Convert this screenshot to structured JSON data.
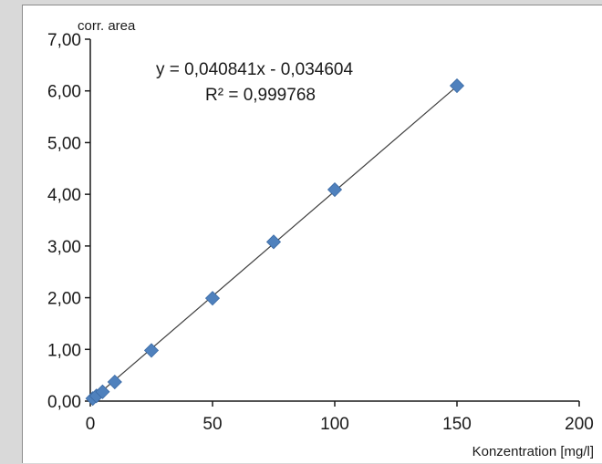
{
  "chart_data": {
    "type": "scatter",
    "ylabel": "corr. area",
    "xlabel": "Konzentration [mg/l]",
    "xlim": [
      0,
      200
    ],
    "ylim": [
      0,
      7
    ],
    "x_ticks": [
      0,
      50,
      100,
      150,
      200
    ],
    "x_tick_labels": [
      "0",
      "50",
      "100",
      "150",
      "200"
    ],
    "y_ticks": [
      0,
      1,
      2,
      3,
      4,
      5,
      6,
      7
    ],
    "y_tick_labels": [
      "0,00",
      "1,00",
      "2,00",
      "3,00",
      "4,00",
      "5,00",
      "6,00",
      "7,00"
    ],
    "grid": false,
    "series": [
      {
        "marker": "diamond",
        "color": "#4f81bd",
        "points": [
          {
            "x": 1,
            "y": 0.05
          },
          {
            "x": 2.5,
            "y": 0.1
          },
          {
            "x": 5,
            "y": 0.18
          },
          {
            "x": 10,
            "y": 0.37
          },
          {
            "x": 25,
            "y": 0.98
          },
          {
            "x": 50,
            "y": 1.99
          },
          {
            "x": 75,
            "y": 3.08
          },
          {
            "x": 100,
            "y": 4.09
          },
          {
            "x": 150,
            "y": 6.1
          }
        ]
      }
    ],
    "trendline": {
      "slope": 0.040841,
      "intercept": -0.034604,
      "x_range": [
        0,
        150
      ],
      "color": "#404040"
    },
    "annotations": {
      "equation": "y = 0,040841x - 0,034604",
      "r_squared": "R² = 0,999768"
    }
  }
}
